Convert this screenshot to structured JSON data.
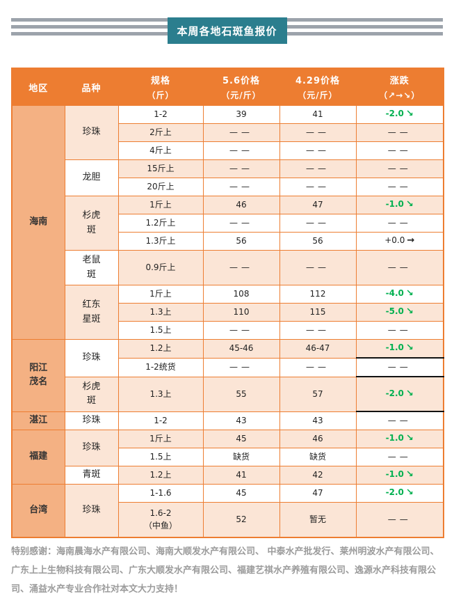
{
  "banner": {
    "title": "本周各地石斑鱼报价"
  },
  "colors": {
    "header_orange": "#ED7D31",
    "region_peach": "#F4B183",
    "row_pink": "#FBE5D6",
    "banner_teal": "#2B7E8E",
    "stripe_gray": "#9CA3AB",
    "change_green": "#00B050",
    "footer_gray": "#9B9B9B",
    "black_highlight": "#111111"
  },
  "table": {
    "headers": [
      {
        "main": "地区",
        "sub": ""
      },
      {
        "main": "品种",
        "sub": ""
      },
      {
        "main": "规格",
        "sub": "（斤）"
      },
      {
        "main": "5.6价格",
        "sub": "（元/斤）"
      },
      {
        "main": "4.29价格",
        "sub": "（元/斤）"
      },
      {
        "main": "涨跌",
        "sub": "（↗→↘）"
      }
    ],
    "rows": [
      {
        "region": {
          "label": "海南",
          "span": 12
        },
        "variety": {
          "label": "珍珠",
          "span": 3,
          "tint": "pink"
        },
        "bg": "white",
        "spec": "1-2",
        "p56": "39",
        "p429": "41",
        "change": {
          "value": "-2.0",
          "dir": "down"
        }
      },
      {
        "bg": "pink",
        "spec": "2斤上",
        "p56": "——",
        "p429": "——",
        "change": {
          "value": "——",
          "dir": "none"
        }
      },
      {
        "bg": "white",
        "spec": "4斤上",
        "p56": "——",
        "p429": "——",
        "change": {
          "value": "——",
          "dir": "none"
        }
      },
      {
        "variety": {
          "label": "龙胆",
          "span": 2,
          "tint": "white"
        },
        "bg": "pink",
        "spec": "15斤上",
        "p56": "——",
        "p429": "——",
        "change": {
          "value": "——",
          "dir": "none"
        }
      },
      {
        "bg": "white",
        "spec": "20斤上",
        "p56": "——",
        "p429": "——",
        "change": {
          "value": "——",
          "dir": "none"
        }
      },
      {
        "variety": {
          "label": "杉虎\n斑",
          "span": 3,
          "tint": "pink"
        },
        "bg": "pink",
        "spec": "1斤上",
        "p56": "46",
        "p429": "47",
        "change": {
          "value": "-1.0",
          "dir": "down"
        }
      },
      {
        "bg": "white",
        "spec": "1.2斤上",
        "p56": "——",
        "p429": "——",
        "change": {
          "value": "——",
          "dir": "none"
        }
      },
      {
        "bg": "white",
        "spec": "1.3斤上",
        "p56": "56",
        "p429": "56",
        "change": {
          "value": "+0.0",
          "dir": "flat"
        }
      },
      {
        "variety": {
          "label": "老鼠\n斑",
          "span": 1,
          "tint": "white"
        },
        "bg": "pink",
        "h": 50,
        "spec": "0.9斤上",
        "p56": "——",
        "p429": "——",
        "change": {
          "value": "——",
          "dir": "none"
        }
      },
      {
        "variety": {
          "label": "红东\n星斑",
          "span": 3,
          "tint": "pink"
        },
        "bg": "white",
        "spec": "1斤上",
        "p56": "108",
        "p429": "112",
        "change": {
          "value": "-4.0",
          "dir": "down"
        }
      },
      {
        "bg": "pink",
        "spec": "1.3上",
        "p56": "110",
        "p429": "115",
        "change": {
          "value": "-5.0",
          "dir": "down"
        }
      },
      {
        "bg": "white",
        "spec": "1.5上",
        "p56": "——",
        "p429": "——",
        "change": {
          "value": "——",
          "dir": "none"
        }
      },
      {
        "region": {
          "label": "阳江\n茂名",
          "span": 3
        },
        "variety": {
          "label": "珍珠",
          "span": 2,
          "tint": "white"
        },
        "bg": "pink",
        "spec": "1.2上",
        "p56": "45-46",
        "p429": "46-47",
        "change": {
          "value": "-1.0",
          "dir": "down"
        }
      },
      {
        "bg": "white",
        "spec": "1-2统货",
        "p56": "——",
        "p429": "——",
        "change": {
          "value": "——",
          "dir": "none"
        },
        "change_black": [
          "top",
          "bottom"
        ]
      },
      {
        "variety": {
          "label": "杉虎\n斑",
          "span": 1,
          "tint": "pink"
        },
        "bg": "pink",
        "h": 50,
        "spec": "1.3上",
        "p56": "55",
        "p429": "57",
        "change": {
          "value": "-2.0",
          "dir": "down"
        },
        "change_black": [
          "bottom"
        ]
      },
      {
        "region": {
          "label": "湛江",
          "span": 1
        },
        "variety": {
          "label": "珍珠",
          "span": 1,
          "tint": "white"
        },
        "bg": "white",
        "spec": "1-2",
        "p56": "43",
        "p429": "43",
        "change": {
          "value": "——",
          "dir": "none"
        }
      },
      {
        "region": {
          "label": "福建",
          "span": 3
        },
        "variety": {
          "label": "珍珠",
          "span": 2,
          "tint": "pink"
        },
        "bg": "pink",
        "spec": "1斤上",
        "p56": "45",
        "p429": "46",
        "change": {
          "value": "-1.0",
          "dir": "down"
        }
      },
      {
        "bg": "white",
        "spec": "1.5上",
        "p56": "缺货",
        "p429": "缺货",
        "change": {
          "value": "——",
          "dir": "none"
        }
      },
      {
        "variety": {
          "label": "青斑",
          "span": 1,
          "tint": "white"
        },
        "bg": "pink",
        "spec": "1.2上",
        "p56": "41",
        "p429": "42",
        "change": {
          "value": "-1.0",
          "dir": "down"
        }
      },
      {
        "region": {
          "label": "台湾",
          "span": 2
        },
        "variety": {
          "label": "珍珠",
          "span": 2,
          "tint": "pink"
        },
        "bg": "white",
        "spec": "1-1.6",
        "p56": "45",
        "p429": "47",
        "change": {
          "value": "-2.0",
          "dir": "down"
        }
      },
      {
        "bg": "pink",
        "h": 50,
        "spec": "1.6-2\n（中鱼）",
        "p56": "52",
        "p429": "暂无",
        "change": {
          "value": "——",
          "dir": "none"
        }
      }
    ]
  },
  "footer": {
    "thanks": "特别感谢：海南晨海水产有限公司、海南大顺发水产有限公司、 中泰水产批发行、莱州明波水产有限公司、广东上上生物科技有限公司、广东大顺发水产有限公司、福建艺祺水产养殖有限公司、逸源水产科技有限公司、涌益水产专业合作社对本文大力支持！"
  }
}
